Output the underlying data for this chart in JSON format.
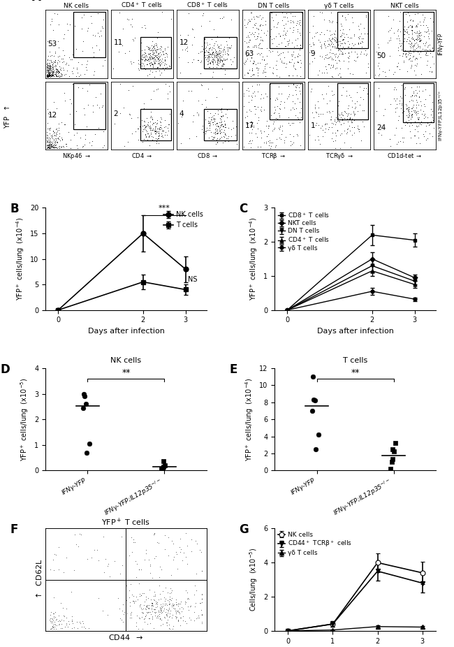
{
  "panel_A": {
    "col_labels": [
      "NK cells",
      "CD4$^+$ T cells",
      "CD8$^+$ T cells",
      "DN T cells",
      "γδ T cells",
      "NKT cells"
    ],
    "row_labels": [
      "IFNγ-YFP",
      "IFNγ-YFP;IL12p35$^{-/-}$"
    ],
    "numbers_row0": [
      53,
      11,
      12,
      63,
      9,
      50
    ],
    "numbers_row1": [
      12,
      2,
      4,
      17,
      1,
      24
    ],
    "x_labels": [
      "NKp46",
      "CD4",
      "CD8",
      "TCRβ",
      "TCRγδ",
      "CD1d-tet"
    ],
    "y_label": "YFP"
  },
  "panel_B": {
    "days": [
      0,
      2,
      3
    ],
    "NK_mean": [
      0.0,
      15.0,
      8.0
    ],
    "NK_err": [
      0.0,
      3.5,
      2.5
    ],
    "T_mean": [
      0.0,
      5.5,
      4.0
    ],
    "T_err": [
      0.0,
      1.5,
      1.0
    ],
    "ylabel": "YFP$^+$ cells/lung  (x10$^{-4}$)",
    "xlabel": "Days after infection",
    "ylim": [
      0,
      20
    ],
    "yticks": [
      0,
      5,
      10,
      15,
      20
    ],
    "legend": [
      "NK cells",
      "T cells"
    ],
    "annot_star": "***",
    "annot_NS": "NS"
  },
  "panel_C": {
    "days": [
      0,
      2,
      3
    ],
    "CD8_mean": [
      0.0,
      2.2,
      2.05
    ],
    "CD8_err": [
      0.0,
      0.3,
      0.2
    ],
    "NKT_mean": [
      0.0,
      1.5,
      0.95
    ],
    "NKT_err": [
      0.0,
      0.2,
      0.1
    ],
    "DN_mean": [
      0.0,
      1.3,
      0.85
    ],
    "DN_err": [
      0.0,
      0.2,
      0.1
    ],
    "CD4_mean": [
      0.0,
      1.15,
      0.75
    ],
    "CD4_err": [
      0.0,
      0.15,
      0.1
    ],
    "gd_mean": [
      0.0,
      0.55,
      0.32
    ],
    "gd_err": [
      0.0,
      0.1,
      0.05
    ],
    "ylabel": "YFP$^+$ cells/lung  (x10$^{-4}$)",
    "xlabel": "Days after infection",
    "ylim": [
      0,
      3
    ],
    "yticks": [
      0,
      1,
      2,
      3
    ],
    "legend": [
      "CD8$^+$ T cells",
      "NKT cells",
      "DN T cells",
      "CD4$^+$ T cells",
      "γδ T cells"
    ]
  },
  "panel_D": {
    "group1_circles": [
      0.7,
      1.05,
      2.45,
      2.6,
      2.9,
      3.0
    ],
    "group2_squares": [
      0.05,
      0.1,
      0.15,
      0.2,
      0.35
    ],
    "xlabels": [
      "IFNγ-YFP",
      "IFNγ-YFP;IL12p35$^{-/-}$"
    ],
    "ylabel": "YFP$^+$ cells/lung  (x10$^{-5}$)",
    "title": "NK cells",
    "ylim": [
      0,
      4
    ],
    "yticks": [
      0,
      1,
      2,
      3,
      4
    ],
    "annot": "**"
  },
  "panel_E": {
    "group1_circles": [
      2.5,
      4.2,
      7.0,
      8.2,
      8.3,
      11.0
    ],
    "group2_squares": [
      0.2,
      1.0,
      1.3,
      2.2,
      2.5,
      3.2
    ],
    "xlabels": [
      "IFNγ-YFP",
      "IFNγ-YFP;IL12p35$^{-/-}$"
    ],
    "ylabel": "YFP$^+$ cells/lung  (x10$^{-4}$)",
    "title": "T cells",
    "ylim": [
      0,
      12
    ],
    "yticks": [
      0,
      2,
      4,
      6,
      8,
      10,
      12
    ],
    "annot": "**"
  },
  "panel_F": {
    "title": "YFP$^+$ T cells",
    "xlabel": "CD44",
    "ylabel": "CD62L"
  },
  "panel_G": {
    "days": [
      0,
      1,
      2,
      3
    ],
    "NK_mean": [
      0.0,
      0.4,
      4.0,
      3.4
    ],
    "NK_err": [
      0.0,
      0.15,
      0.55,
      0.65
    ],
    "CD44TCRb_mean": [
      0.0,
      0.4,
      3.5,
      2.8
    ],
    "CD44TCRb_err": [
      0.0,
      0.15,
      0.55,
      0.55
    ],
    "gd_mean": [
      0.0,
      0.05,
      0.25,
      0.22
    ],
    "gd_err": [
      0.0,
      0.03,
      0.06,
      0.06
    ],
    "ylabel": "Cells/lung  (x10$^{-5}$)",
    "xlabel": "Days after infection",
    "ylim": [
      0,
      6
    ],
    "yticks": [
      0,
      2,
      4,
      6
    ],
    "legend": [
      "NK cells",
      "CD44$^+$ TCRβ$^+$ cells",
      "γδ T cells"
    ]
  }
}
